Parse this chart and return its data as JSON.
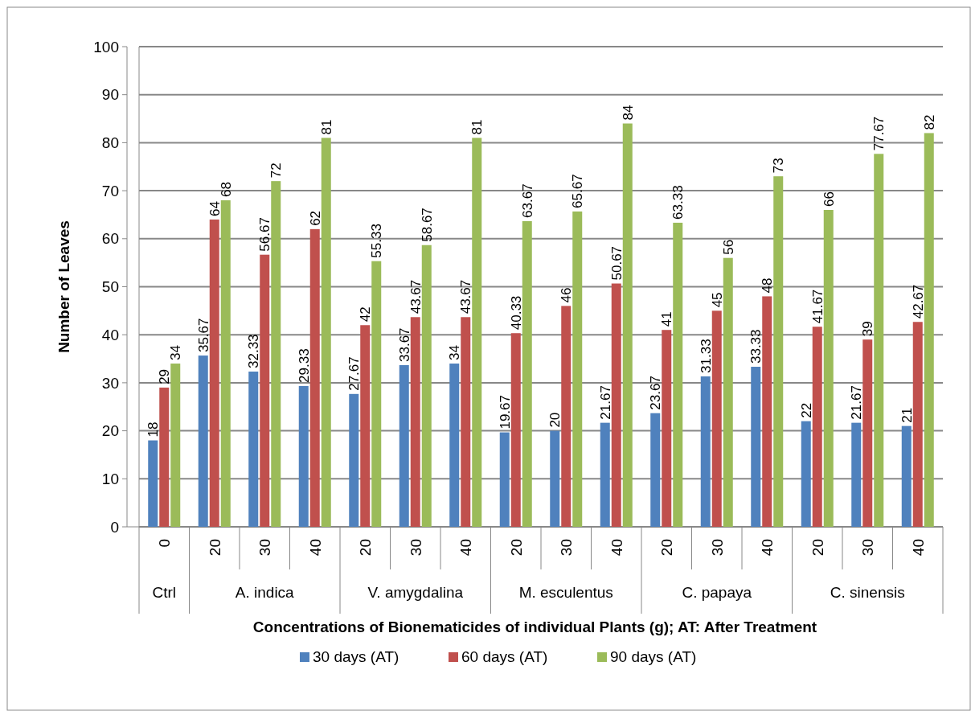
{
  "chart_data": {
    "type": "bar",
    "xlabel": "Concentrations of Bionematicides of individual Plants (g); AT: After Treatment",
    "ylabel": "Number of Leaves",
    "categories": [
      "0",
      "20",
      "30",
      "40",
      "20",
      "30",
      "40",
      "20",
      "30",
      "40",
      "20",
      "30",
      "40",
      "20",
      "30",
      "40"
    ],
    "annotations": [
      "Ctrl",
      "A. indica",
      "V. amygdalina",
      "M. esculentus",
      "C. papaya",
      "C. sinensis"
    ],
    "series": [
      {
        "name": "30 days (AT)",
        "color": "#4f81bd",
        "values": [
          18,
          35.67,
          32.33,
          29.33,
          27.67,
          33.67,
          34,
          19.67,
          20,
          21.67,
          23.67,
          31.33,
          33.33,
          22,
          21.67,
          21
        ]
      },
      {
        "name": "60 days (AT)",
        "color": "#c0504d",
        "values": [
          29,
          64,
          56.67,
          62,
          42,
          43.67,
          43.67,
          40.33,
          46,
          50.67,
          41,
          45,
          48,
          41.67,
          39,
          42.67
        ]
      },
      {
        "name": "90 days (AT)",
        "color": "#9bbb59",
        "values": [
          34,
          68,
          72,
          81,
          55.33,
          58.67,
          81,
          63.67,
          65.67,
          84,
          63.33,
          56,
          73,
          66,
          77.67,
          82
        ]
      }
    ],
    "ylim": [
      0,
      100
    ],
    "yticks": [
      0,
      10,
      20,
      30,
      40,
      50,
      60,
      70,
      80,
      90,
      100
    ],
    "grid": "y",
    "data_labels": true,
    "legend": "bottom"
  }
}
